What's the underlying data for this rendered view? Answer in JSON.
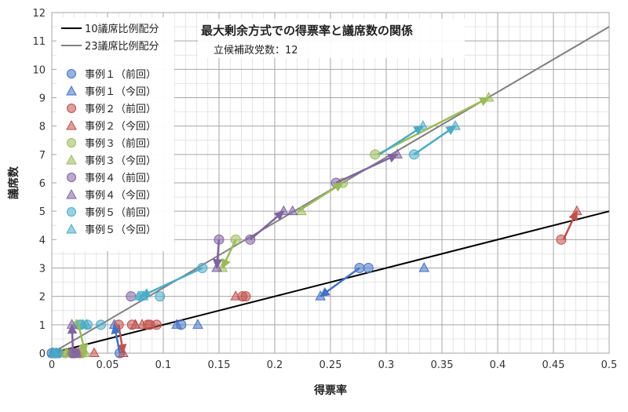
{
  "chart_data": {
    "type": "scatter",
    "title": "最大剰余方式での得票率と議席数の関係",
    "subtitle": "立候補政党数：12",
    "xlabel": "得票率",
    "ylabel": "議席数",
    "xlim": [
      0,
      0.5
    ],
    "ylim": [
      0,
      12
    ],
    "x_ticks": [
      "0",
      "0.05",
      "0.1",
      "0.15",
      "0.2",
      "0.25",
      "0.3",
      "0.35",
      "0.4",
      "0.45",
      "0.5"
    ],
    "y_ticks": [
      "0",
      "1",
      "2",
      "3",
      "4",
      "5",
      "6",
      "7",
      "8",
      "9",
      "10",
      "11",
      "12"
    ],
    "grid": true,
    "legend_position": "top-left",
    "lines": [
      {
        "name": "10議席比例配分",
        "color": "#000000",
        "x": [
          0,
          0.5
        ],
        "y": [
          0,
          5
        ]
      },
      {
        "name": "23議席比例配分",
        "color": "#808080",
        "x": [
          0,
          0.5
        ],
        "y": [
          0,
          11.5
        ]
      }
    ],
    "series": [
      {
        "name": "事例１（前回）",
        "color": "#4472C4",
        "marker": "circle",
        "x": [
          0.276,
          0.284,
          0.116,
          0.061,
          0.0,
          0.003,
          0.006
        ],
        "y": [
          3,
          3,
          1,
          0,
          0,
          0,
          0
        ]
      },
      {
        "name": "事例１（今回）",
        "color": "#4472C4",
        "marker": "triangle",
        "x": [
          0.334,
          0.241,
          0.131,
          0.112,
          0.056,
          0.001,
          0.004,
          0.007
        ],
        "y": [
          3,
          2,
          1,
          1,
          1,
          0,
          0,
          0
        ]
      },
      {
        "name": "事例２（前回）",
        "color": "#C0504D",
        "marker": "circle",
        "x": [
          0.457,
          0.174,
          0.171,
          0.086,
          0.088,
          0.094,
          0.072,
          0.06,
          0.025,
          0.018
        ],
        "y": [
          4,
          2,
          2,
          1,
          1,
          1,
          1,
          1,
          0,
          0
        ]
      },
      {
        "name": "事例２（今回）",
        "color": "#C0504D",
        "marker": "triangle",
        "x": [
          0.471,
          0.165,
          0.075,
          0.081,
          0.064,
          0.038,
          0.024,
          0.016
        ],
        "y": [
          5,
          2,
          1,
          1,
          0,
          0,
          0,
          0
        ]
      },
      {
        "name": "事例３（前回）",
        "color": "#9BBB59",
        "marker": "circle",
        "x": [
          0.261,
          0.29,
          0.165,
          0.024,
          0.027,
          0.019,
          0.012
        ],
        "y": [
          6,
          7,
          4,
          1,
          0,
          0,
          0
        ]
      },
      {
        "name": "事例３（今回）",
        "color": "#9BBB59",
        "marker": "triangle",
        "x": [
          0.392,
          0.224,
          0.153,
          0.03,
          0.022,
          0.018,
          0.013
        ],
        "y": [
          9,
          5,
          3,
          0,
          1,
          0,
          0
        ]
      },
      {
        "name": "事例４（前回）",
        "color": "#8064A2",
        "marker": "circle",
        "x": [
          0.255,
          0.15,
          0.178,
          0.071,
          0.021,
          0.019
        ],
        "y": [
          6,
          4,
          4,
          2,
          0,
          0
        ]
      },
      {
        "name": "事例４（今回）",
        "color": "#8064A2",
        "marker": "triangle",
        "x": [
          0.31,
          0.208,
          0.216,
          0.148,
          0.018,
          0.022
        ],
        "y": [
          7,
          5,
          5,
          3,
          1,
          0
        ]
      },
      {
        "name": "事例５（前回）",
        "color": "#4BACC6",
        "marker": "circle",
        "x": [
          0.325,
          0.135,
          0.097,
          0.08,
          0.044,
          0.032,
          0.026,
          0.002,
          0.005
        ],
        "y": [
          7,
          3,
          2,
          2,
          1,
          1,
          1,
          0,
          0
        ]
      },
      {
        "name": "事例５（今回）",
        "color": "#4BACC6",
        "marker": "triangle",
        "x": [
          0.362,
          0.333,
          0.082,
          0.078,
          0.031,
          0.028,
          0.002
        ],
        "y": [
          8,
          8,
          2,
          2,
          1,
          1,
          0
        ]
      }
    ],
    "arrows": [
      {
        "color": "#C0504D",
        "from": [
          0.459,
          4
        ],
        "to": [
          0.471,
          5
        ]
      },
      {
        "color": "#9BBB59",
        "from": [
          0.292,
          7
        ],
        "to": [
          0.392,
          9
        ]
      },
      {
        "color": "#4BACC6",
        "from": [
          0.294,
          7
        ],
        "to": [
          0.333,
          8
        ]
      },
      {
        "color": "#4BACC6",
        "from": [
          0.325,
          7
        ],
        "to": [
          0.362,
          8
        ]
      },
      {
        "color": "#8064A2",
        "from": [
          0.255,
          6
        ],
        "to": [
          0.31,
          7
        ]
      },
      {
        "color": "#8064A2",
        "from": [
          0.178,
          4
        ],
        "to": [
          0.208,
          5
        ]
      },
      {
        "color": "#9BBB59",
        "from": [
          0.221,
          5
        ],
        "to": [
          0.261,
          6
        ]
      },
      {
        "color": "#9BBB59",
        "from": [
          0.165,
          4
        ],
        "to": [
          0.153,
          3
        ]
      },
      {
        "color": "#8064A2",
        "from": [
          0.15,
          4
        ],
        "to": [
          0.148,
          3
        ]
      },
      {
        "color": "#4BACC6",
        "from": [
          0.135,
          3
        ],
        "to": [
          0.08,
          2
        ]
      },
      {
        "color": "#4472C4",
        "from": [
          0.276,
          3
        ],
        "to": [
          0.241,
          2
        ]
      },
      {
        "color": "#C0504D",
        "from": [
          0.06,
          1
        ],
        "to": [
          0.064,
          0
        ]
      },
      {
        "color": "#4472C4",
        "from": [
          0.061,
          0
        ],
        "to": [
          0.056,
          1
        ]
      },
      {
        "color": "#8064A2",
        "from": [
          0.019,
          0
        ],
        "to": [
          0.018,
          1
        ]
      },
      {
        "color": "#9BBB59",
        "from": [
          0.024,
          1
        ],
        "to": [
          0.03,
          0
        ]
      }
    ]
  }
}
